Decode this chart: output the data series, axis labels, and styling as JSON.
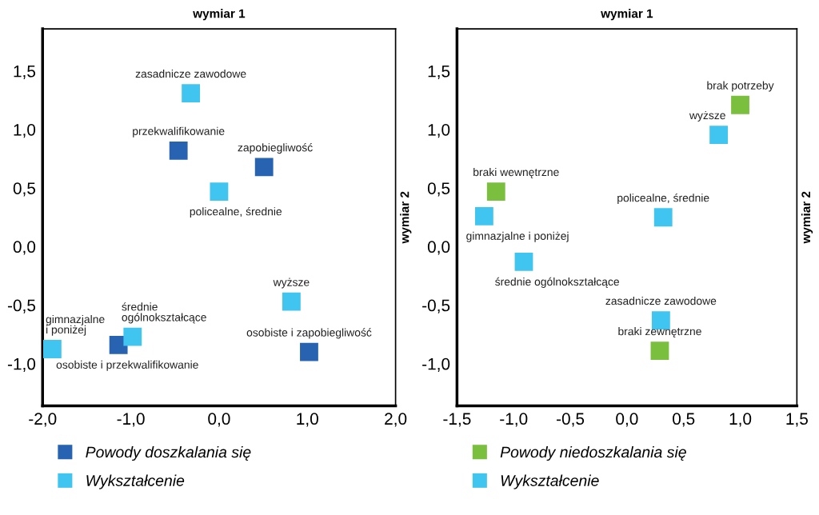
{
  "chart_data": [
    {
      "type": "scatter",
      "xlabel": "wymiar 1",
      "ylabel": "wymiar 2",
      "xlim": [
        -2,
        2
      ],
      "ylim": [
        -1.36,
        1.86
      ],
      "xticks": [
        {
          "value": -2,
          "label": "-2,0"
        },
        {
          "value": -1,
          "label": "-1,0"
        },
        {
          "value": 0,
          "label": "0,0"
        },
        {
          "value": 1,
          "label": "1,0"
        },
        {
          "value": 2,
          "label": "2,0"
        }
      ],
      "yticks": [
        {
          "value": -1,
          "label": "-1,0"
        },
        {
          "value": -0.5,
          "label": "-0,5"
        },
        {
          "value": 0,
          "label": "0,0"
        },
        {
          "value": 0.5,
          "label": "0,5"
        },
        {
          "value": 1,
          "label": "1,0"
        },
        {
          "value": 1.5,
          "label": "1,5"
        }
      ],
      "marker": "square",
      "legend": "bottom",
      "grid": false,
      "series": [
        {
          "name": "Powody doszkalania się",
          "color": "#2763b0",
          "x": [
            -0.46,
            0.51,
            1.02,
            -1.14
          ],
          "values": [
            0.82,
            0.68,
            -0.9,
            -0.84
          ]
        },
        {
          "name": "Wykształcenie",
          "color": "#40c4f0",
          "x": [
            -0.32,
            0.0,
            0.82,
            -1.89,
            -0.98
          ],
          "values": [
            1.31,
            0.47,
            -0.47,
            -0.875,
            -0.77
          ]
        }
      ],
      "annotations": [
        {
          "text": "przekwalifikowanie",
          "x": -0.46,
          "y": 0.82
        },
        {
          "text": "zapobiegliwość",
          "x": 0.51,
          "y": 0.68
        },
        {
          "text": "osobiste i zapobiegliwość",
          "x": 1.02,
          "y": -0.9
        },
        {
          "text": "osobiste i przekwalifikowanie",
          "x": -1.14,
          "y": -0.84
        },
        {
          "text": "zasadnicze zawodowe",
          "x": -0.32,
          "y": 1.31
        },
        {
          "text": "policealne, średnie",
          "x": 0.0,
          "y": 0.47
        },
        {
          "text": "wyższe",
          "x": 0.82,
          "y": -0.47
        },
        {
          "text": "gimnazjalne\ni poniżej",
          "x": -1.89,
          "y": -0.875
        },
        {
          "text": "średnie\nogólnokształcące",
          "x": -0.98,
          "y": -0.77
        }
      ]
    },
    {
      "type": "scatter",
      "xlabel": "wymiar 1",
      "ylabel": "wymiar 2",
      "xlim": [
        -1.5,
        1.5
      ],
      "ylim": [
        -1.36,
        1.86
      ],
      "xticks": [
        {
          "value": -1.5,
          "label": "-1,5"
        },
        {
          "value": -1,
          "label": "-1,0"
        },
        {
          "value": -0.5,
          "label": "-0,5"
        },
        {
          "value": 0,
          "label": "0,0"
        },
        {
          "value": 0.5,
          "label": "0,5"
        },
        {
          "value": 1,
          "label": "1,0"
        },
        {
          "value": 1.5,
          "label": "1,5"
        }
      ],
      "yticks": [
        {
          "value": -1,
          "label": "-1,0"
        },
        {
          "value": -0.5,
          "label": "-0,5"
        },
        {
          "value": 0,
          "label": "0,0"
        },
        {
          "value": 0.5,
          "label": "0,5"
        },
        {
          "value": 1,
          "label": "1,0"
        },
        {
          "value": 1.5,
          "label": "1,5"
        }
      ],
      "marker": "square",
      "legend": "bottom",
      "grid": false,
      "series": [
        {
          "name": "Powody niedoszkalania się",
          "color": "#7bbf3f",
          "x": [
            1.0,
            -1.155,
            0.29
          ],
          "values": [
            1.21,
            0.47,
            -0.89
          ]
        },
        {
          "name": "Wykształcenie",
          "color": "#40c4f0",
          "x": [
            0.81,
            -1.26,
            0.32,
            -0.91,
            0.3
          ],
          "values": [
            0.955,
            0.26,
            0.25,
            -0.13,
            -0.63
          ]
        }
      ],
      "annotations": [
        {
          "text": "brak potrzeby",
          "x": 1.0,
          "y": 1.21
        },
        {
          "text": "braki wewnętrzne",
          "x": -1.155,
          "y": 0.47
        },
        {
          "text": "braki zewnętrzne",
          "x": 0.29,
          "y": -0.89
        },
        {
          "text": "wyższe",
          "x": 0.81,
          "y": 0.955
        },
        {
          "text": "gimnazjalne i poniżej",
          "x": -1.26,
          "y": 0.26
        },
        {
          "text": "policealne, średnie",
          "x": 0.32,
          "y": 0.25
        },
        {
          "text": "średnie ogólnokształcące",
          "x": -0.91,
          "y": -0.13
        },
        {
          "text": "zasadnicze zawodowe",
          "x": 0.3,
          "y": -0.63
        }
      ]
    }
  ]
}
